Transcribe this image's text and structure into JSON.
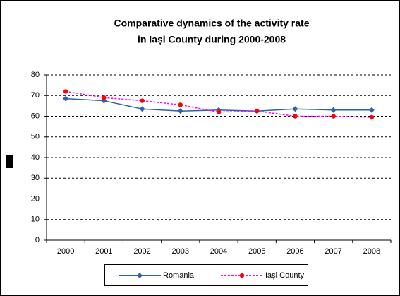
{
  "chart_data": {
    "type": "line",
    "title": [
      "Comparative dynamics of the activity rate",
      "in Iași County during 2000-2008"
    ],
    "categories": [
      "2000",
      "2001",
      "2002",
      "2003",
      "2004",
      "2005",
      "2006",
      "2007",
      "2008"
    ],
    "series": [
      {
        "name": "Romania",
        "color": "#2a63a8",
        "marker_color": "#2a63a8",
        "values": [
          68.5,
          67.5,
          63.5,
          62.5,
          63,
          62.5,
          63.5,
          63,
          63
        ]
      },
      {
        "name": "Iași County",
        "color": "#ff00ff",
        "marker_color": "#ff0000",
        "values": [
          72,
          69,
          67.5,
          65.5,
          62,
          62.5,
          60,
          60,
          59.5
        ]
      }
    ],
    "ylim": [
      0,
      80
    ],
    "yticks": [
      0,
      10,
      20,
      30,
      40,
      50,
      60,
      70,
      80
    ],
    "grid": true,
    "legend": "bottom"
  }
}
